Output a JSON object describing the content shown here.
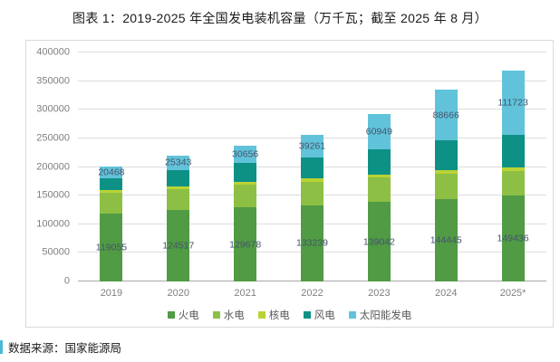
{
  "page": {
    "title": "图表 1：2019-2025 年全国发电装机容量（万千瓦；截至 2025 年 8 月）",
    "source": "数据来源：国家能源局"
  },
  "chart_data": {
    "type": "bar",
    "subtype": "stacked-column",
    "title": "图表 1：2019-2025 年全国发电装机容量（万千瓦；截至 2025 年 8 月）",
    "unit": "万千瓦",
    "categories": [
      "2019",
      "2020",
      "2021",
      "2022",
      "2023",
      "2024",
      "2025*"
    ],
    "series": [
      {
        "name": "火电",
        "color": "#509b44",
        "values": [
          119055,
          124517,
          129678,
          133239,
          139042,
          144445,
          149436
        ],
        "labels_shown": true
      },
      {
        "name": "水电",
        "color": "#8dbf45",
        "values": [
          35600,
          37000,
          39100,
          41300,
          42200,
          43600,
          44000
        ],
        "labels_shown": false,
        "estimated": true
      },
      {
        "name": "核电",
        "color": "#b9d335",
        "values": [
          4900,
          5000,
          5300,
          5600,
          5700,
          6100,
          6300
        ],
        "labels_shown": false,
        "estimated": true
      },
      {
        "name": "风电",
        "color": "#0d9185",
        "values": [
          21000,
          28200,
          32800,
          36500,
          44100,
          52100,
          57000
        ],
        "labels_shown": false,
        "estimated": true
      },
      {
        "name": "太阳能发电",
        "color": "#61c3da",
        "values": [
          20468,
          25343,
          30656,
          39261,
          60949,
          88666,
          111723
        ],
        "labels_shown": true
      }
    ],
    "ylim": [
      0,
      400000
    ],
    "ytick_step": 50000,
    "grid": true,
    "legend_position": "bottom",
    "value_label_color": "#44546a",
    "axis_label_color": "#7f7f7f"
  }
}
